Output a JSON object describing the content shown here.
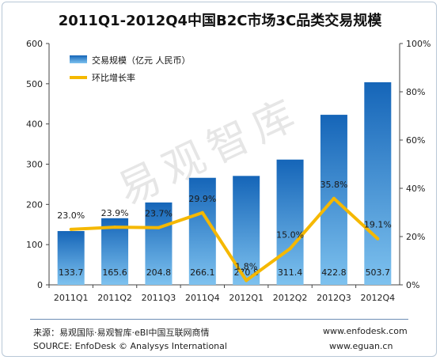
{
  "chart_data": {
    "type": "bar",
    "title": "2011Q1-2012Q4中国B2C市场3C品类交易规模",
    "categories": [
      "2011Q1",
      "2011Q2",
      "2011Q3",
      "2011Q4",
      "2012Q1",
      "2012Q2",
      "2012Q3",
      "2012Q4"
    ],
    "series": [
      {
        "name": "交易规模（亿元 人民币）",
        "type": "bar",
        "axis": "left",
        "values": [
          133.7,
          165.6,
          204.8,
          266.1,
          270.8,
          311.4,
          422.8,
          503.7
        ],
        "labels": [
          "133.7",
          "165.6",
          "204.8",
          "266.1",
          "270.8",
          "311.4",
          "422.8",
          "503.7"
        ]
      },
      {
        "name": "环比增长率",
        "type": "line",
        "axis": "right",
        "values": [
          23.0,
          23.9,
          23.7,
          29.9,
          1.8,
          15.0,
          35.8,
          19.1
        ],
        "labels": [
          "23.0%",
          "23.9%",
          "23.7%",
          "29.9%",
          "1.8%",
          "15.0%",
          "35.8%",
          "19.1%"
        ]
      }
    ],
    "ylim_left": [
      0,
      600
    ],
    "yticks_left": [
      "0",
      "100",
      "200",
      "300",
      "400",
      "500",
      "600"
    ],
    "ylim_right": [
      0,
      100
    ],
    "yticks_right": [
      "0%",
      "20%",
      "40%",
      "60%",
      "80%",
      "100%"
    ],
    "legend_position": "top-left",
    "grid": false,
    "colors": {
      "bar_top": "#1565b8",
      "bar_bottom": "#7ec2ef",
      "line": "#f5b800"
    }
  },
  "watermark": "易观智库",
  "footer": {
    "source_cn": "来源：易观国际·易观智库·eBI中国互联网商情",
    "source_en": "SOURCE:  EnfoDesk © Analysys International",
    "url1": "www.enfodesk.com",
    "url2": "www.eguan.cn"
  }
}
